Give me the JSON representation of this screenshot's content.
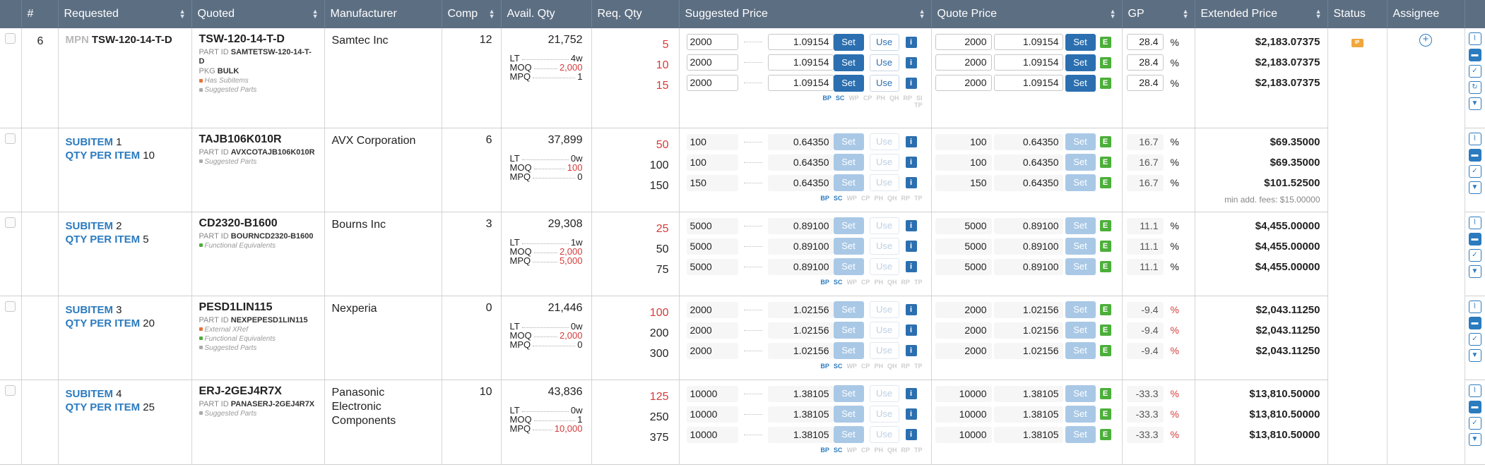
{
  "columns": {
    "num": "#",
    "requested": "Requested",
    "quoted": "Quoted",
    "manufacturer": "Manufacturer",
    "comp": "Comp",
    "avail_qty": "Avail. Qty",
    "req_qty": "Req. Qty",
    "suggested_price": "Suggested Price",
    "quote_price": "Quote Price",
    "gp": "GP",
    "extended_price": "Extended Price",
    "status": "Status",
    "assignee": "Assignee"
  },
  "labels": {
    "mpn": "MPN",
    "subitem": "SUBITEM",
    "qty_per_item": "QTY PER ITEM",
    "part_id": "PART ID",
    "pkg": "PKG",
    "lt": "LT",
    "moq": "MOQ",
    "mpq": "MPQ",
    "set": "Set",
    "use": "Use",
    "info": "i",
    "e": "E",
    "pct": "%",
    "status_badge": "IP",
    "tags": [
      "BP",
      "SC",
      "WP",
      "CP",
      "PH",
      "QH",
      "RP",
      "SI",
      "TP"
    ]
  },
  "main": {
    "row_number": "6",
    "mpn": "TSW-120-14-T-D",
    "quoted_mpn": "TSW-120-14-T-D",
    "part_id": "SAMTETSW-120-14-T-D",
    "pkg": "BULK",
    "flags": [
      {
        "text": "Has Subitems",
        "color": "#e8703a"
      },
      {
        "text": "Suggested Parts",
        "color": "#aaaaaa"
      }
    ],
    "manufacturer": "Samtec Inc",
    "comp": "12",
    "avail_qty": "21,752",
    "lt": "4w",
    "moq": "2,000",
    "mpq": "1",
    "lines": [
      {
        "req": "5",
        "sug_qty": "2000",
        "sug_price": "1.09154",
        "q_qty": "2000",
        "q_price": "1.09154",
        "gp": "28.4",
        "ext": "$2,183.07375"
      },
      {
        "req": "10",
        "sug_qty": "2000",
        "sug_price": "1.09154",
        "q_qty": "2000",
        "q_price": "1.09154",
        "gp": "28.4",
        "ext": "$2,183.07375"
      },
      {
        "req": "15",
        "sug_qty": "2000",
        "sug_price": "1.09154",
        "q_qty": "2000",
        "q_price": "1.09154",
        "gp": "28.4",
        "ext": "$2,183.07375"
      }
    ]
  },
  "subitems": [
    {
      "n": "1",
      "qpi": "10",
      "mpn": "TAJB106K010R",
      "part_id": "AVXCOTAJB106K010R",
      "flags": [
        {
          "text": "Suggested Parts",
          "color": "#aaaaaa"
        }
      ],
      "manufacturer": "AVX Corporation",
      "comp": "6",
      "avail_qty": "37,899",
      "lt": "0w",
      "moq": "100",
      "mpq": "0",
      "moq_red": true,
      "mpq_red": false,
      "lines": [
        {
          "req": "50",
          "sug_qty": "100",
          "sug_price": "0.64350",
          "q_qty": "100",
          "q_price": "0.64350",
          "gp": "16.7",
          "ext": "$69.35000"
        },
        {
          "req": "100",
          "sug_qty": "100",
          "sug_price": "0.64350",
          "q_qty": "100",
          "q_price": "0.64350",
          "gp": "16.7",
          "ext": "$69.35000"
        },
        {
          "req": "150",
          "sug_qty": "150",
          "sug_price": "0.64350",
          "q_qty": "150",
          "q_price": "0.64350",
          "gp": "16.7",
          "ext": "$101.52500"
        }
      ],
      "fee": "min add. fees: $15.00000"
    },
    {
      "n": "2",
      "qpi": "5",
      "mpn": "CD2320-B1600",
      "part_id": "BOURNCD2320-B1600",
      "flags": [
        {
          "text": "Functional Equivalents",
          "color": "#4caf3a"
        }
      ],
      "manufacturer": "Bourns Inc",
      "comp": "3",
      "avail_qty": "29,308",
      "lt": "1w",
      "moq": "2,000",
      "mpq": "5,000",
      "moq_red": true,
      "mpq_red": true,
      "lines": [
        {
          "req": "25",
          "sug_qty": "5000",
          "sug_price": "0.89100",
          "q_qty": "5000",
          "q_price": "0.89100",
          "gp": "11.1",
          "ext": "$4,455.00000"
        },
        {
          "req": "50",
          "sug_qty": "5000",
          "sug_price": "0.89100",
          "q_qty": "5000",
          "q_price": "0.89100",
          "gp": "11.1",
          "ext": "$4,455.00000"
        },
        {
          "req": "75",
          "sug_qty": "5000",
          "sug_price": "0.89100",
          "q_qty": "5000",
          "q_price": "0.89100",
          "gp": "11.1",
          "ext": "$4,455.00000"
        }
      ],
      "fee": ""
    },
    {
      "n": "3",
      "qpi": "20",
      "mpn": "PESD1LIN115",
      "part_id": "NEXPEPESD1LIN115",
      "flags": [
        {
          "text": "External XRef",
          "color": "#e8703a"
        },
        {
          "text": "Functional Equivalents",
          "color": "#4caf3a"
        },
        {
          "text": "Suggested Parts",
          "color": "#aaaaaa"
        }
      ],
      "manufacturer": "Nexperia",
      "comp": "0",
      "avail_qty": "21,446",
      "lt": "0w",
      "moq": "2,000",
      "mpq": "0",
      "moq_red": true,
      "mpq_red": false,
      "lines": [
        {
          "req": "100",
          "sug_qty": "2000",
          "sug_price": "1.02156",
          "q_qty": "2000",
          "q_price": "1.02156",
          "gp": "-9.4",
          "ext": "$2,043.11250"
        },
        {
          "req": "200",
          "sug_qty": "2000",
          "sug_price": "1.02156",
          "q_qty": "2000",
          "q_price": "1.02156",
          "gp": "-9.4",
          "ext": "$2,043.11250"
        },
        {
          "req": "300",
          "sug_qty": "2000",
          "sug_price": "1.02156",
          "q_qty": "2000",
          "q_price": "1.02156",
          "gp": "-9.4",
          "ext": "$2,043.11250"
        }
      ],
      "fee": ""
    },
    {
      "n": "4",
      "qpi": "25",
      "mpn": "ERJ-2GEJ4R7X",
      "part_id": "PANASERJ-2GEJ4R7X",
      "flags": [
        {
          "text": "Suggested Parts",
          "color": "#aaaaaa"
        }
      ],
      "manufacturer": "Panasonic Electronic Components",
      "comp": "10",
      "avail_qty": "43,836",
      "lt": "0w",
      "moq": "1",
      "mpq": "10,000",
      "moq_red": false,
      "mpq_red": true,
      "lines": [
        {
          "req": "125",
          "sug_qty": "10000",
          "sug_price": "1.38105",
          "q_qty": "10000",
          "q_price": "1.38105",
          "gp": "-33.3",
          "ext": "$13,810.50000"
        },
        {
          "req": "250",
          "sug_qty": "10000",
          "sug_price": "1.38105",
          "q_qty": "10000",
          "q_price": "1.38105",
          "gp": "-33.3",
          "ext": "$13,810.50000"
        },
        {
          "req": "375",
          "sug_qty": "10000",
          "sug_price": "1.38105",
          "q_qty": "10000",
          "q_price": "1.38105",
          "gp": "-33.3",
          "ext": "$13,810.50000"
        }
      ],
      "fee": ""
    }
  ]
}
